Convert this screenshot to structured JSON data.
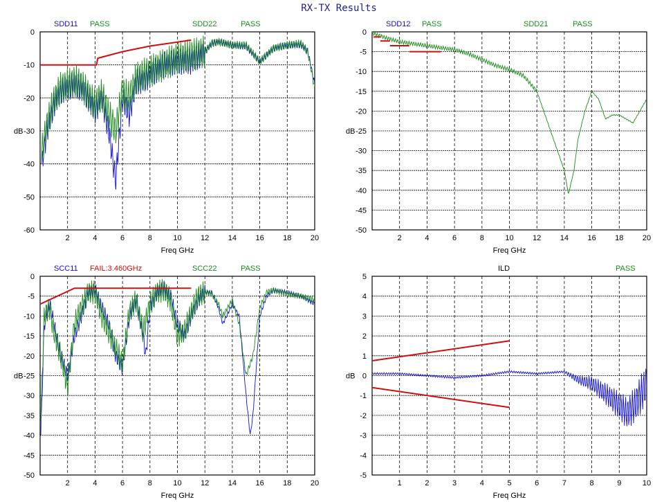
{
  "title": "RX-TX Results",
  "colors": {
    "blue": "#1010d0",
    "green": "#1a8a1a",
    "red": "#cc1010",
    "black": "#000000"
  },
  "chart_data": [
    {
      "type": "line",
      "xlabel": "Freq GHz",
      "ylabel": "dB",
      "xlim": [
        0,
        20
      ],
      "ylim": [
        -60,
        0
      ],
      "xticks": [
        2,
        4,
        6,
        8,
        10,
        12,
        14,
        16,
        18,
        20
      ],
      "yticks": [
        0,
        -10,
        -20,
        -30,
        -40,
        -50,
        -60
      ],
      "headers": [
        {
          "text": "SDD11",
          "color": "blue"
        },
        {
          "text": "PASS",
          "color": "green"
        },
        {
          "text": "SDD22",
          "color": "green"
        },
        {
          "text": "PASS",
          "color": "green"
        }
      ],
      "series": [
        {
          "name": "SDD11",
          "color": "blue",
          "ripple": 4,
          "points": [
            [
              0.1,
              -40
            ],
            [
              0.5,
              -30
            ],
            [
              1,
              -22
            ],
            [
              1.5,
              -18
            ],
            [
              2,
              -17
            ],
            [
              2.5,
              -16
            ],
            [
              3,
              -17
            ],
            [
              3.5,
              -20
            ],
            [
              4,
              -24
            ],
            [
              4.5,
              -20
            ],
            [
              5,
              -30
            ],
            [
              5.5,
              -45
            ],
            [
              6,
              -20
            ],
            [
              6.5,
              -25
            ],
            [
              7,
              -15
            ],
            [
              7.5,
              -15
            ],
            [
              8,
              -13
            ],
            [
              9,
              -10
            ],
            [
              10,
              -9
            ],
            [
              11,
              -9
            ],
            [
              12,
              -6
            ],
            [
              12.5,
              -3.5
            ],
            [
              13,
              -3
            ],
            [
              14,
              -4
            ],
            [
              15,
              -4.5
            ],
            [
              16,
              -9
            ],
            [
              17,
              -5
            ],
            [
              18,
              -4
            ],
            [
              19,
              -4
            ],
            [
              19.5,
              -6
            ],
            [
              20,
              -16
            ]
          ]
        },
        {
          "name": "SDD22",
          "color": "green",
          "ripple": 5,
          "points": [
            [
              0.1,
              -37
            ],
            [
              0.5,
              -28
            ],
            [
              1,
              -21
            ],
            [
              1.5,
              -17
            ],
            [
              2,
              -16
            ],
            [
              2.5,
              -15
            ],
            [
              3,
              -16
            ],
            [
              3.5,
              -19
            ],
            [
              4,
              -22
            ],
            [
              4.5,
              -19
            ],
            [
              5,
              -25
            ],
            [
              5.5,
              -30
            ],
            [
              6,
              -18
            ],
            [
              6.5,
              -20
            ],
            [
              7,
              -14
            ],
            [
              7.5,
              -13
            ],
            [
              8,
              -12
            ],
            [
              9,
              -10
            ],
            [
              10,
              -8
            ],
            [
              11,
              -7
            ],
            [
              12,
              -6
            ],
            [
              12.5,
              -3.5
            ],
            [
              13,
              -3
            ],
            [
              14,
              -4
            ],
            [
              15,
              -4
            ],
            [
              16,
              -9
            ],
            [
              17,
              -5
            ],
            [
              18,
              -4
            ],
            [
              19,
              -3.5
            ],
            [
              19.5,
              -6
            ],
            [
              20,
              -17
            ]
          ]
        },
        {
          "name": "Limit",
          "color": "red",
          "ripple": 0,
          "points": [
            [
              0,
              -10
            ],
            [
              4.1,
              -10
            ],
            [
              4.2,
              -8
            ],
            [
              6,
              -6
            ],
            [
              8,
              -4.3
            ],
            [
              11,
              -2.5
            ]
          ]
        }
      ]
    },
    {
      "type": "line",
      "xlabel": "Freq GHz",
      "ylabel": "dB",
      "xlim": [
        0,
        20
      ],
      "ylim": [
        -50,
        0
      ],
      "xticks": [
        2,
        4,
        6,
        8,
        10,
        12,
        14,
        16,
        18,
        20
      ],
      "yticks": [
        0,
        -5,
        -10,
        -15,
        -20,
        -25,
        -30,
        -35,
        -40,
        -45,
        -50
      ],
      "headers": [
        {
          "text": "SDD12",
          "color": "blue"
        },
        {
          "text": "PASS",
          "color": "green"
        },
        {
          "text": "SDD21",
          "color": "green"
        },
        {
          "text": "PASS",
          "color": "green"
        }
      ],
      "series": [
        {
          "name": "SDD21",
          "color": "green",
          "ripple": 0.5,
          "points": [
            [
              0,
              -0.3
            ],
            [
              1,
              -1.5
            ],
            [
              2,
              -2.5
            ],
            [
              4,
              -3.5
            ],
            [
              6,
              -4.5
            ],
            [
              7,
              -5.5
            ],
            [
              8,
              -7
            ],
            [
              9,
              -8.5
            ],
            [
              10,
              -9.5
            ],
            [
              11,
              -11
            ],
            [
              12,
              -15
            ],
            [
              13,
              -25
            ],
            [
              13.5,
              -30
            ],
            [
              14,
              -35
            ],
            [
              14.3,
              -41
            ],
            [
              14.7,
              -35
            ],
            [
              15,
              -27
            ],
            [
              15.5,
              -20
            ],
            [
              16,
              -15
            ],
            [
              16.5,
              -17
            ],
            [
              17,
              -22
            ],
            [
              17.5,
              -21
            ],
            [
              18,
              -21
            ],
            [
              19,
              -23
            ],
            [
              20,
              -17
            ]
          ]
        },
        {
          "name": "Limit 1",
          "color": "red",
          "ripple": 0,
          "points": [
            [
              0.1,
              -1.3
            ],
            [
              0.6,
              -1.3
            ]
          ]
        },
        {
          "name": "Limit 2",
          "color": "red",
          "ripple": 0,
          "points": [
            [
              0.6,
              -2.3
            ],
            [
              1.3,
              -2.3
            ]
          ]
        },
        {
          "name": "Limit 3",
          "color": "red",
          "ripple": 0,
          "points": [
            [
              1.3,
              -3.5
            ],
            [
              2.7,
              -3.5
            ]
          ]
        },
        {
          "name": "Limit 4",
          "color": "red",
          "ripple": 0,
          "points": [
            [
              2.7,
              -5
            ],
            [
              5,
              -5
            ]
          ]
        }
      ]
    },
    {
      "type": "line",
      "xlabel": "Freq GHz",
      "ylabel": "dB",
      "xlim": [
        0,
        20
      ],
      "ylim": [
        -50,
        0
      ],
      "xticks": [
        2,
        4,
        6,
        8,
        10,
        12,
        14,
        16,
        18,
        20
      ],
      "yticks": [
        0,
        -5,
        -10,
        -15,
        -20,
        -25,
        -30,
        -35,
        -40,
        -45,
        -50
      ],
      "headers": [
        {
          "text": "SCC11",
          "color": "blue"
        },
        {
          "text": "FAIL:3.460GHz",
          "color": "red"
        },
        {
          "text": "SCC22",
          "color": "green"
        },
        {
          "text": "PASS",
          "color": "green"
        }
      ],
      "series": [
        {
          "name": "SCC11",
          "color": "blue",
          "ripple": 2,
          "points": [
            [
              0.05,
              -40
            ],
            [
              0.3,
              -12
            ],
            [
              0.7,
              -7
            ],
            [
              1,
              -12
            ],
            [
              1.5,
              -20
            ],
            [
              2,
              -25
            ],
            [
              2.5,
              -15
            ],
            [
              3,
              -10
            ],
            [
              3.5,
              -4
            ],
            [
              4,
              -3.5
            ],
            [
              4.5,
              -8
            ],
            [
              5,
              -12
            ],
            [
              5.5,
              -20
            ],
            [
              6,
              -23
            ],
            [
              6.5,
              -10
            ],
            [
              7,
              -6
            ],
            [
              7.5,
              -15
            ],
            [
              7.7,
              -20
            ],
            [
              8,
              -8
            ],
            [
              8.5,
              -4
            ],
            [
              9,
              -3
            ],
            [
              9.5,
              -5
            ],
            [
              10,
              -12
            ],
            [
              10.5,
              -15
            ],
            [
              11,
              -10
            ],
            [
              11.5,
              -6
            ],
            [
              12,
              -4
            ],
            [
              12.5,
              -4
            ],
            [
              13,
              -8
            ],
            [
              13.3,
              -12
            ],
            [
              14,
              -7
            ],
            [
              14.5,
              -10
            ],
            [
              15,
              -30
            ],
            [
              15.3,
              -40
            ],
            [
              15.5,
              -35
            ],
            [
              16,
              -10
            ],
            [
              16.5,
              -5
            ],
            [
              17,
              -3.5
            ],
            [
              18,
              -4
            ],
            [
              19,
              -5
            ],
            [
              20,
              -7
            ]
          ]
        },
        {
          "name": "SCC22",
          "color": "green",
          "ripple": 3,
          "points": [
            [
              0.05,
              -35
            ],
            [
              0.3,
              -10
            ],
            [
              0.7,
              -8
            ],
            [
              1,
              -14
            ],
            [
              1.5,
              -20
            ],
            [
              2,
              -28
            ],
            [
              2.5,
              -12
            ],
            [
              3,
              -8
            ],
            [
              3.5,
              -4
            ],
            [
              4,
              -4
            ],
            [
              4.5,
              -10
            ],
            [
              5,
              -14
            ],
            [
              5.5,
              -18
            ],
            [
              6,
              -22
            ],
            [
              6.5,
              -9
            ],
            [
              7,
              -6
            ],
            [
              7.5,
              -14
            ],
            [
              8,
              -7
            ],
            [
              8.5,
              -4
            ],
            [
              9,
              -3.5
            ],
            [
              9.5,
              -6
            ],
            [
              10,
              -15
            ],
            [
              10.5,
              -14
            ],
            [
              11,
              -9
            ],
            [
              11.5,
              -5
            ],
            [
              12,
              -4
            ],
            [
              12.5,
              -4.5
            ],
            [
              13,
              -7
            ],
            [
              13.3,
              -10
            ],
            [
              14,
              -6
            ],
            [
              14.5,
              -12
            ],
            [
              15,
              -25
            ],
            [
              15.5,
              -20
            ],
            [
              16,
              -8
            ],
            [
              16.5,
              -4
            ],
            [
              17,
              -3.5
            ],
            [
              18,
              -4.5
            ],
            [
              19,
              -5
            ],
            [
              20,
              -6
            ]
          ]
        },
        {
          "name": "Limit",
          "color": "red",
          "ripple": 0,
          "points": [
            [
              0,
              -7
            ],
            [
              2.5,
              -3
            ],
            [
              11,
              -3
            ]
          ]
        }
      ]
    },
    {
      "type": "line",
      "xlabel": "Freq GHz",
      "ylabel": "dB",
      "xlim": [
        0,
        10
      ],
      "ylim": [
        -5,
        5
      ],
      "xticks": [
        1,
        2,
        3,
        4,
        5,
        6,
        7,
        8,
        9,
        10
      ],
      "yticks": [
        5,
        4,
        3,
        2,
        1,
        0,
        -1,
        -2,
        -3,
        -4,
        -5
      ],
      "headers": [
        {
          "text": "ILD",
          "color": "black"
        },
        {
          "text": "PASS",
          "color": "green"
        }
      ],
      "series": [
        {
          "name": "ILD",
          "color": "blue",
          "ripple": 0.05,
          "ripple_growth": [
            7,
            0.5
          ],
          "points": [
            [
              0,
              0.1
            ],
            [
              1,
              0.1
            ],
            [
              2,
              0
            ],
            [
              3,
              -0.1
            ],
            [
              4,
              0
            ],
            [
              5,
              0.2
            ],
            [
              6,
              0.1
            ],
            [
              7,
              0.2
            ],
            [
              7.5,
              -0.2
            ],
            [
              8,
              -0.4
            ],
            [
              8.5,
              -0.9
            ],
            [
              9,
              -1.5
            ],
            [
              9.3,
              -1.9
            ],
            [
              9.6,
              -1.4
            ],
            [
              10,
              -0.4
            ]
          ]
        },
        {
          "name": "Upper limit",
          "color": "red",
          "ripple": 0,
          "points": [
            [
              0,
              0.75
            ],
            [
              5,
              1.75
            ]
          ]
        },
        {
          "name": "Lower limit",
          "color": "red",
          "ripple": 0,
          "points": [
            [
              0,
              -0.6
            ],
            [
              5,
              -1.6
            ]
          ]
        }
      ]
    }
  ]
}
